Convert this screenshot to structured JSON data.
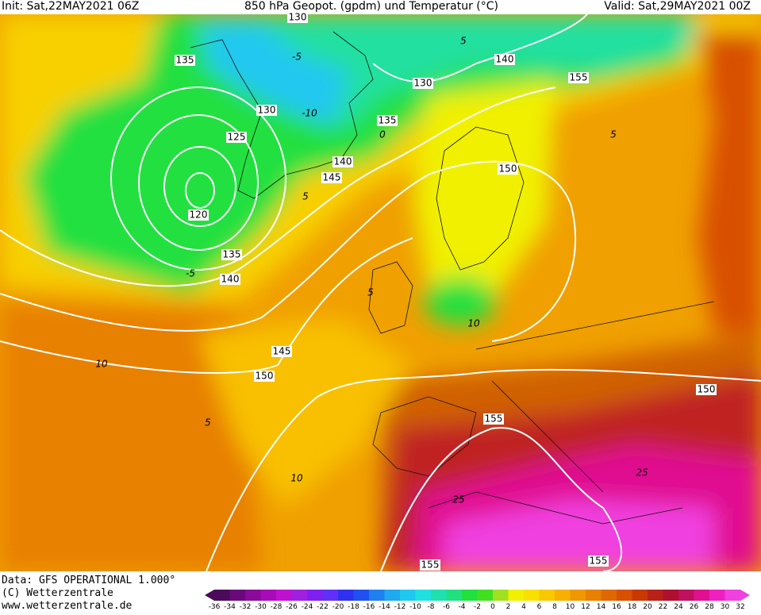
{
  "header": {
    "init": "Init: Sat,22MAY2021 06Z",
    "title": "850 hPa Geopot. (gpdm) und Temperatur (°C)",
    "valid": "Valid: Sat,29MAY2021 00Z"
  },
  "geopotential_labels": [
    130,
    135,
    130,
    125,
    120,
    135,
    140,
    140,
    145,
    135,
    130,
    140,
    155,
    150,
    145,
    150,
    155,
    150,
    155,
    155
  ],
  "temperature_labels": [
    5,
    -10,
    0,
    5,
    -5,
    5,
    10,
    5,
    10,
    25,
    25,
    10,
    5,
    -5
  ],
  "footer": {
    "data": "Data: GFS OPERATIONAL 1.000°",
    "copyright": "(C) Wetterzentrale",
    "url": "www.wetterzentrale.de"
  },
  "colorbar": {
    "ticks": [
      -36,
      -34,
      -32,
      -30,
      -28,
      -26,
      -24,
      -22,
      -20,
      -18,
      -16,
      -14,
      -12,
      -10,
      -8,
      -6,
      -4,
      -2,
      0,
      2,
      4,
      6,
      8,
      10,
      12,
      14,
      16,
      18,
      20,
      22,
      24,
      26,
      28,
      30,
      32
    ],
    "colors": [
      "#4b0b5a",
      "#6a0a7a",
      "#8a0a9a",
      "#a80ab8",
      "#c010d0",
      "#a020e0",
      "#8020f0",
      "#6030f8",
      "#3030f0",
      "#2050f0",
      "#2080f0",
      "#20a8f0",
      "#20c8f0",
      "#20e0e0",
      "#20e0b0",
      "#20e080",
      "#20e040",
      "#40e020",
      "#a0e020",
      "#f0f000",
      "#f8e000",
      "#f8c800",
      "#f8b000",
      "#f09800",
      "#e88000",
      "#e06800",
      "#d85000",
      "#c83800",
      "#b82018",
      "#b01030",
      "#c01060",
      "#e01090",
      "#f020c0",
      "#f040e0"
    ]
  }
}
